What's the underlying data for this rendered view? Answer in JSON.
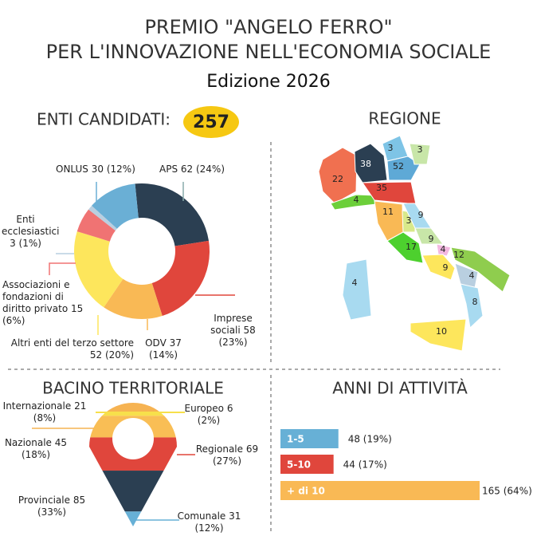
{
  "header": {
    "title": [
      "PREMIO \"ANGELO FERRO\"",
      "PER L'INNOVAZIONE NELL'ECONOMIA SOCIALE"
    ],
    "edition": "Edizione 2026",
    "candidates_label": "ENTI CANDIDATI:",
    "candidates_count": 257
  },
  "chart_data": [
    {
      "type": "donut",
      "categories": [
        "APS",
        "Imprese sociali",
        "ODV",
        "Altri enti del terzo settore",
        "Associazioni e fondazioni di diritto privato",
        "Enti ecclesiastici",
        "ONLUS"
      ],
      "values": [
        62,
        58,
        37,
        52,
        15,
        3,
        30
      ],
      "value_labels": [
        "62 (24%)",
        "58 (23%)",
        "37 (14%)",
        "52 (20%)",
        "15 (6%)",
        "3 (1%)",
        "30 (12%)"
      ],
      "colors": [
        "#2b3f52",
        "#e0463c",
        "#f9b955",
        "#fde65c",
        "#f07373",
        "#b9cfe0",
        "#6aafd5"
      ]
    },
    {
      "type": "pin",
      "title": "BACINO TERRITORIALE",
      "categories": [
        "Internazionale",
        "Europeo",
        "Nazionale",
        "Regionale",
        "Provinciale",
        "Comunale"
      ],
      "values": [
        21,
        6,
        45,
        69,
        85,
        31
      ],
      "value_labels": [
        "21 (8%)",
        "6 (2%)",
        "45 (18%)",
        "69 (27%)",
        "85 (33%)",
        "31 (12%)"
      ],
      "colors": [
        "#f6b352",
        "#f7e04b",
        "#f9be55",
        "#e0463c",
        "#2b3f52",
        "#67b0d6"
      ]
    },
    {
      "type": "bar",
      "title": "ANNI DI ATTIVITÀ",
      "categories": [
        "1-5",
        "5-10",
        "+ di 10"
      ],
      "values": [
        48,
        44,
        165
      ],
      "value_labels": [
        "48 (19%)",
        "44 (17%)",
        "165 (64%)"
      ],
      "colors": [
        "#67b0d6",
        "#e0463c",
        "#f9b955"
      ]
    }
  ],
  "map": {
    "title": "REGIONE",
    "values": [
      3,
      3,
      38,
      52,
      22,
      35,
      4,
      11,
      3,
      9,
      9,
      17,
      4,
      12,
      9,
      4,
      8,
      4,
      10
    ]
  }
}
